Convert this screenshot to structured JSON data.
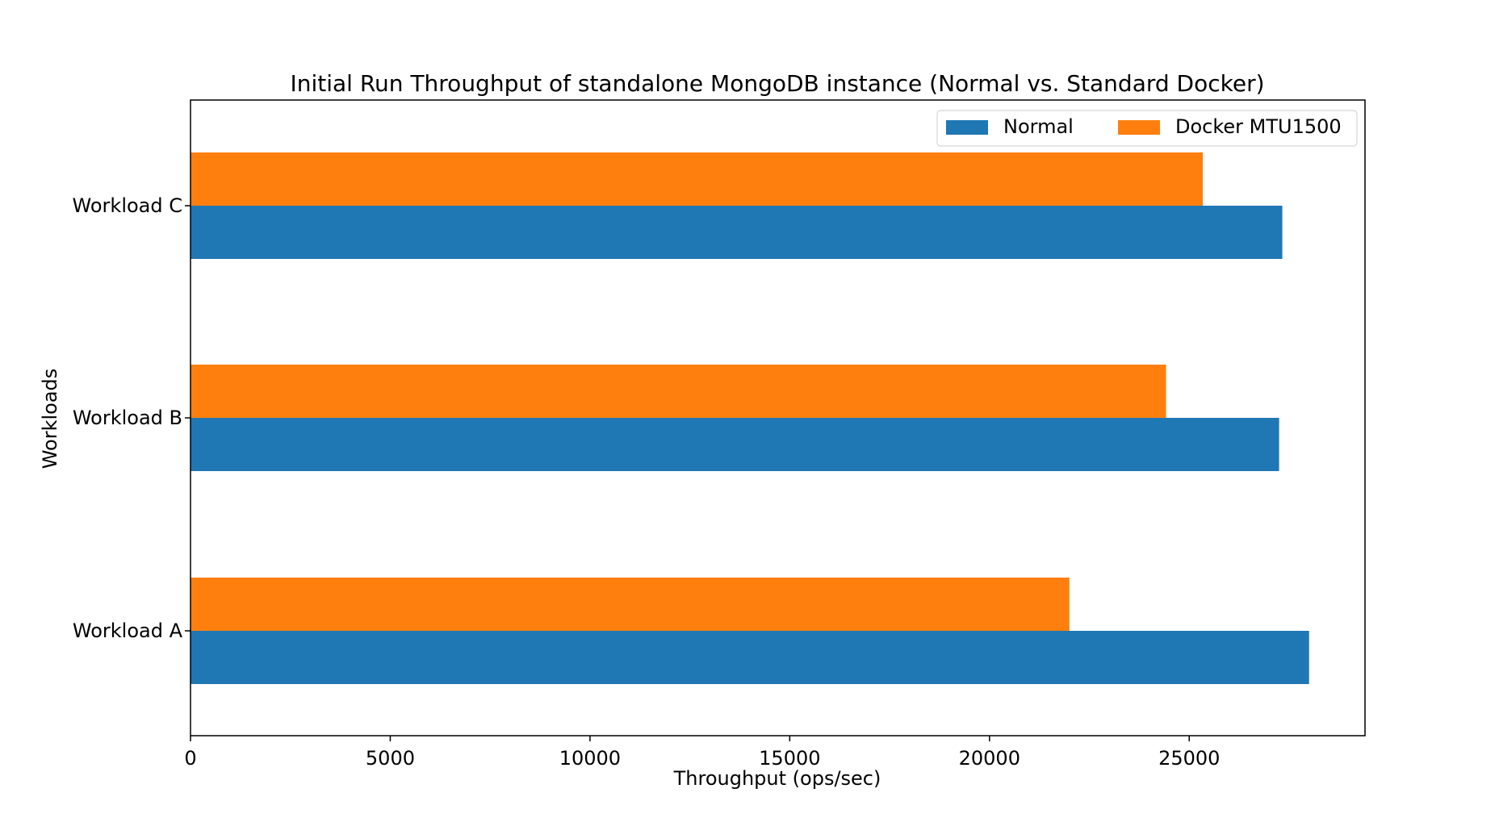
{
  "chart_data": {
    "type": "bar",
    "orientation": "horizontal",
    "title": "Initial Run Throughput of standalone MongoDB instance (Normal vs. Standard Docker)",
    "xlabel": "Throughput (ops/sec)",
    "ylabel": "Workloads",
    "categories": [
      "Workload A",
      "Workload B",
      "Workload C"
    ],
    "series": [
      {
        "name": "Normal",
        "color": "#1f77b4",
        "values": [
          28000,
          27250,
          27330
        ]
      },
      {
        "name": "Docker MTU1500",
        "color": "#ff7f0e",
        "values": [
          22000,
          24420,
          25340
        ]
      }
    ],
    "xlim": [
      0,
      29400
    ],
    "xticks": [
      0,
      5000,
      10000,
      15000,
      20000,
      25000
    ],
    "grid": false,
    "legend_position": "top-right"
  }
}
